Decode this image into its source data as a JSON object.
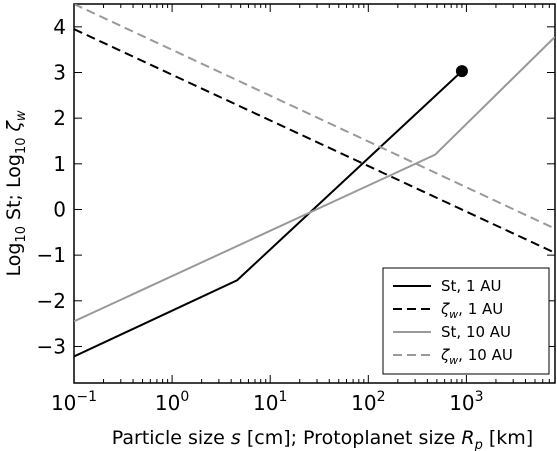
{
  "chart_data": {
    "type": "line",
    "xscale": "log",
    "xlim": [
      0.1,
      8000
    ],
    "ylim": [
      -3.8,
      4.5
    ],
    "xlabel_parts": [
      "Particle size ",
      "s",
      " [cm]; Protoplanet size ",
      "R",
      "p",
      " [km]"
    ],
    "ylabel_parts": [
      "Log",
      "10",
      " St; Log",
      "10",
      " ",
      "ζ",
      "w"
    ],
    "x_tick_labels": [
      {
        "value": 0.1,
        "base": "10",
        "exp": "−1"
      },
      {
        "value": 1,
        "base": "10",
        "exp": "0"
      },
      {
        "value": 10,
        "base": "10",
        "exp": "1"
      },
      {
        "value": 100,
        "base": "10",
        "exp": "2"
      },
      {
        "value": 1000,
        "base": "10",
        "exp": "3"
      }
    ],
    "y_ticks": [
      -3,
      -2,
      -1,
      0,
      1,
      2,
      3,
      4
    ],
    "y_tick_labels": [
      "−3",
      "−2",
      "−1",
      "0",
      "1",
      "2",
      "3",
      "4"
    ],
    "series": [
      {
        "legend_parts": [
          "St, 1 AU"
        ],
        "color": "#000000",
        "dash": "solid",
        "points": [
          [
            0.1,
            -3.22
          ],
          [
            4.6,
            -1.55
          ],
          [
            900,
            3.03
          ]
        ],
        "end_marker": true
      },
      {
        "legend_parts": [
          "ζ",
          "w",
          ", 1 AU"
        ],
        "color": "#000000",
        "dash": "dashed",
        "points": [
          [
            0.1,
            3.95
          ],
          [
            8000,
            -0.95
          ]
        ],
        "end_marker": false
      },
      {
        "legend_parts": [
          "St, 10 AU"
        ],
        "color": "#999999",
        "dash": "solid",
        "points": [
          [
            0.1,
            -2.45
          ],
          [
            480,
            1.2
          ],
          [
            8000,
            3.78
          ]
        ],
        "end_marker": false
      },
      {
        "legend_parts": [
          "ζ",
          "w",
          ", 10 AU"
        ],
        "color": "#999999",
        "dash": "dashed",
        "points": [
          [
            0.1,
            4.5
          ],
          [
            8000,
            -0.42
          ]
        ],
        "end_marker": false
      }
    ],
    "legend_position": "lower-right",
    "grid": false
  }
}
